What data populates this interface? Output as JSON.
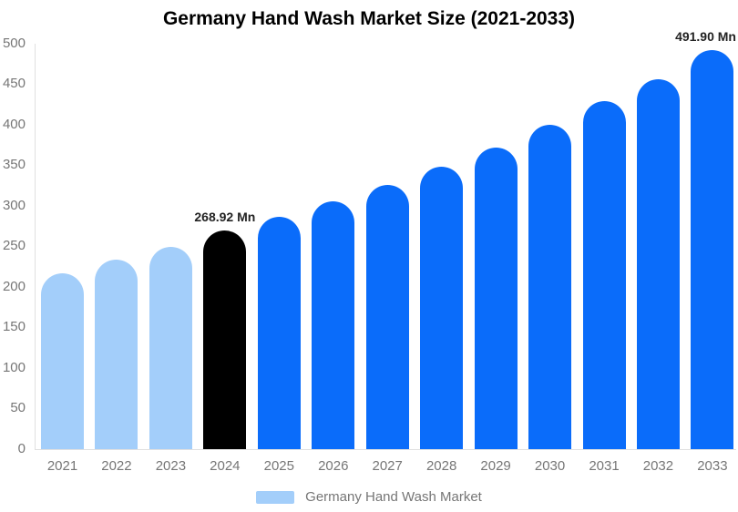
{
  "chart_data": {
    "type": "bar",
    "title": "Germany Hand Wash Market Size (2021-2033)",
    "unit": "Mn",
    "categories": [
      "2021",
      "2022",
      "2023",
      "2024",
      "2025",
      "2026",
      "2027",
      "2028",
      "2029",
      "2030",
      "2031",
      "2032",
      "2033"
    ],
    "values": [
      217,
      233,
      249,
      268.92,
      286,
      305,
      326,
      348,
      372,
      400,
      429,
      456,
      491.9
    ],
    "bar_colors": [
      "#a3cefa",
      "#a3cefa",
      "#a3cefa",
      "#000000",
      "#0a6cfa",
      "#0a6cfa",
      "#0a6cfa",
      "#0a6cfa",
      "#0a6cfa",
      "#0a6cfa",
      "#0a6cfa",
      "#0a6cfa",
      "#0a6cfa"
    ],
    "labeled_points": [
      {
        "category": "2024",
        "label": "268.92 Mn"
      },
      {
        "category": "2033",
        "label": "491.90 Mn"
      }
    ],
    "ylim": [
      0,
      500
    ],
    "y_tick_step": 50,
    "y_tick_labels": [
      "0",
      "50",
      "100",
      "150",
      "200",
      "250",
      "300",
      "350",
      "400",
      "450",
      "500"
    ],
    "xlabel": "",
    "ylabel": "",
    "grid": false,
    "legend_position": "bottom"
  },
  "legend": {
    "label": "Germany Hand Wash Market",
    "swatch_color": "#a3cefa"
  },
  "colors": {
    "historical_bar": "#a3cefa",
    "highlight_bar": "#000000",
    "forecast_bar": "#0a6cfa",
    "axis_line": "#e0e0e0",
    "axis_text": "#767676",
    "title_text": "#000000",
    "value_label_text": "#222222"
  }
}
